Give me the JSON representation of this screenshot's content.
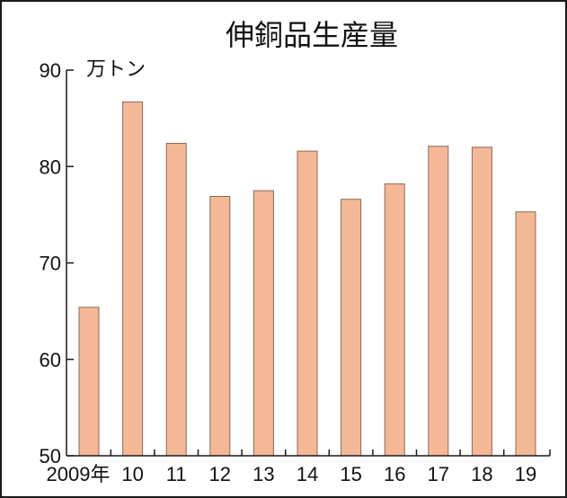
{
  "chart_data": {
    "type": "bar",
    "title": "伸銅品生産量",
    "unit": "万トン",
    "categories": [
      "2009年",
      "10",
      "11",
      "12",
      "13",
      "14",
      "15",
      "16",
      "17",
      "18",
      "19"
    ],
    "values": [
      65.4,
      86.7,
      82.4,
      76.9,
      77.5,
      81.6,
      76.6,
      78.2,
      82.1,
      82.0,
      75.3
    ],
    "ylim": [
      50,
      90
    ],
    "yticks": [
      50,
      60,
      70,
      80,
      90
    ],
    "grid": false,
    "colors": {
      "bar_fill": "#f5b896",
      "bar_stroke": "#8a6a58",
      "axis": "#1a1a1a",
      "text": "#111111"
    }
  }
}
